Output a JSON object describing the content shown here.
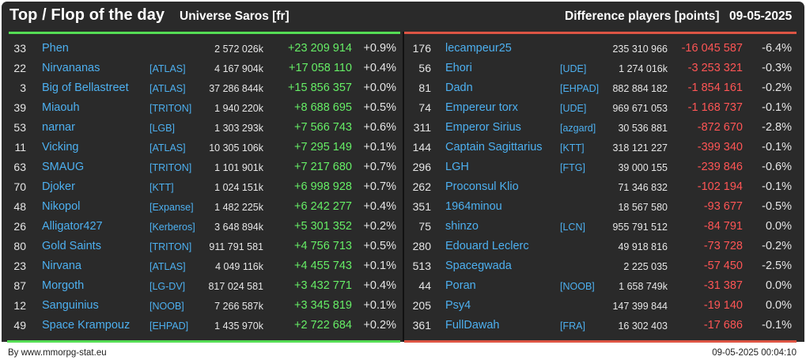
{
  "header": {
    "title": "Top / Flop of the day",
    "universe": "Universe Saros [fr]",
    "metric": "Difference players [points]",
    "date": "09-05-2025"
  },
  "colors": {
    "background": "#2a2a2a",
    "top_accent": "#55dd55",
    "flop_accent": "#dd5544",
    "link": "#4db0f0",
    "positive": "#66ee66",
    "negative": "#ff5555"
  },
  "top": [
    {
      "rank": "33",
      "name": "Phen",
      "alliance": "",
      "points": "2 572 026k",
      "delta": "+23 209 914",
      "pct": "+0.9%"
    },
    {
      "rank": "22",
      "name": "Nirvananas",
      "alliance": "[ATLAS]",
      "points": "4 167 904k",
      "delta": "+17 058 110",
      "pct": "+0.4%"
    },
    {
      "rank": "3",
      "name": "Big of Bellastreet",
      "alliance": "[ATLAS]",
      "points": "37 286 844k",
      "delta": "+15 856 357",
      "pct": "+0.0%"
    },
    {
      "rank": "39",
      "name": "Miaouh",
      "alliance": "[TRITON]",
      "points": "1 940 220k",
      "delta": "+8 688 695",
      "pct": "+0.5%"
    },
    {
      "rank": "53",
      "name": "narnar",
      "alliance": "[LGB]",
      "points": "1 303 293k",
      "delta": "+7 566 743",
      "pct": "+0.6%"
    },
    {
      "rank": "11",
      "name": "Vicking",
      "alliance": "[ATLAS]",
      "points": "10 305 106k",
      "delta": "+7 295 149",
      "pct": "+0.1%"
    },
    {
      "rank": "63",
      "name": "SMAUG",
      "alliance": "[TRITON]",
      "points": "1 101 901k",
      "delta": "+7 217 680",
      "pct": "+0.7%"
    },
    {
      "rank": "70",
      "name": "Djoker",
      "alliance": "[KTT]",
      "points": "1 024 151k",
      "delta": "+6 998 928",
      "pct": "+0.7%"
    },
    {
      "rank": "48",
      "name": "Nikopol",
      "alliance": "[Expanse]",
      "points": "1 482 225k",
      "delta": "+6 242 277",
      "pct": "+0.4%"
    },
    {
      "rank": "26",
      "name": "Alligator427",
      "alliance": "[Kerberos]",
      "points": "3 648 894k",
      "delta": "+5 301 352",
      "pct": "+0.2%"
    },
    {
      "rank": "80",
      "name": "Gold Saints",
      "alliance": "[TRITON]",
      "points": "911 791 581",
      "delta": "+4 756 713",
      "pct": "+0.5%"
    },
    {
      "rank": "23",
      "name": "Nirvana",
      "alliance": "[ATLAS]",
      "points": "4 049 116k",
      "delta": "+4 455 743",
      "pct": "+0.1%"
    },
    {
      "rank": "87",
      "name": "Morgoth",
      "alliance": "[LG-DV]",
      "points": "817 024 581",
      "delta": "+3 432 771",
      "pct": "+0.4%"
    },
    {
      "rank": "12",
      "name": "Sanguinius",
      "alliance": "[NOOB]",
      "points": "7 266 587k",
      "delta": "+3 345 819",
      "pct": "+0.1%"
    },
    {
      "rank": "49",
      "name": "Space Krampouz",
      "alliance": "[EHPAD]",
      "points": "1 435 970k",
      "delta": "+2 722 684",
      "pct": "+0.2%"
    }
  ],
  "flop": [
    {
      "rank": "176",
      "name": "lecampeur25",
      "alliance": "",
      "points": "235 310 966",
      "delta": "-16 045 587",
      "pct": "-6.4%"
    },
    {
      "rank": "56",
      "name": "Ehori",
      "alliance": "[UDE]",
      "points": "1 274 016k",
      "delta": "-3 253 321",
      "pct": "-0.3%"
    },
    {
      "rank": "81",
      "name": "Dadn",
      "alliance": "[EHPAD]",
      "points": "882 884 182",
      "delta": "-1 854 161",
      "pct": "-0.2%"
    },
    {
      "rank": "74",
      "name": "Empereur torx",
      "alliance": "[UDE]",
      "points": "969 671 053",
      "delta": "-1 168 737",
      "pct": "-0.1%"
    },
    {
      "rank": "311",
      "name": "Emperor Sirius",
      "alliance": "[azgard]",
      "points": "30 536 881",
      "delta": "-872 670",
      "pct": "-2.8%"
    },
    {
      "rank": "144",
      "name": "Captain Sagittarius",
      "alliance": "[KTT]",
      "points": "318 121 227",
      "delta": "-399 340",
      "pct": "-0.1%"
    },
    {
      "rank": "296",
      "name": "LGH",
      "alliance": "[FTG]",
      "points": "39 000 155",
      "delta": "-239 846",
      "pct": "-0.6%"
    },
    {
      "rank": "262",
      "name": "Proconsul Klio",
      "alliance": "",
      "points": "71 346 832",
      "delta": "-102 194",
      "pct": "-0.1%"
    },
    {
      "rank": "351",
      "name": "1964minou",
      "alliance": "",
      "points": "18 567 580",
      "delta": "-93 677",
      "pct": "-0.5%"
    },
    {
      "rank": "75",
      "name": "shinzo",
      "alliance": "[LCN]",
      "points": "955 791 512",
      "delta": "-84 791",
      "pct": "0.0%"
    },
    {
      "rank": "280",
      "name": "Edouard Leclerc",
      "alliance": "",
      "points": "49 918 816",
      "delta": "-73 728",
      "pct": "-0.2%"
    },
    {
      "rank": "513",
      "name": "Spacegwada",
      "alliance": "",
      "points": "2 225 035",
      "delta": "-57 450",
      "pct": "-2.5%"
    },
    {
      "rank": "44",
      "name": "Poran",
      "alliance": "[NOOB]",
      "points": "1 658 749k",
      "delta": "-31 387",
      "pct": "0.0%"
    },
    {
      "rank": "205",
      "name": "Psy4",
      "alliance": "",
      "points": "147 399 844",
      "delta": "-19 140",
      "pct": "0.0%"
    },
    {
      "rank": "361",
      "name": "FullDawah",
      "alliance": "[FRA]",
      "points": "16 302 403",
      "delta": "-17 686",
      "pct": "-0.1%"
    }
  ],
  "footer": {
    "credit": "By www.mmorpg-stat.eu",
    "timestamp": "09-05-2025 00:04:10"
  }
}
